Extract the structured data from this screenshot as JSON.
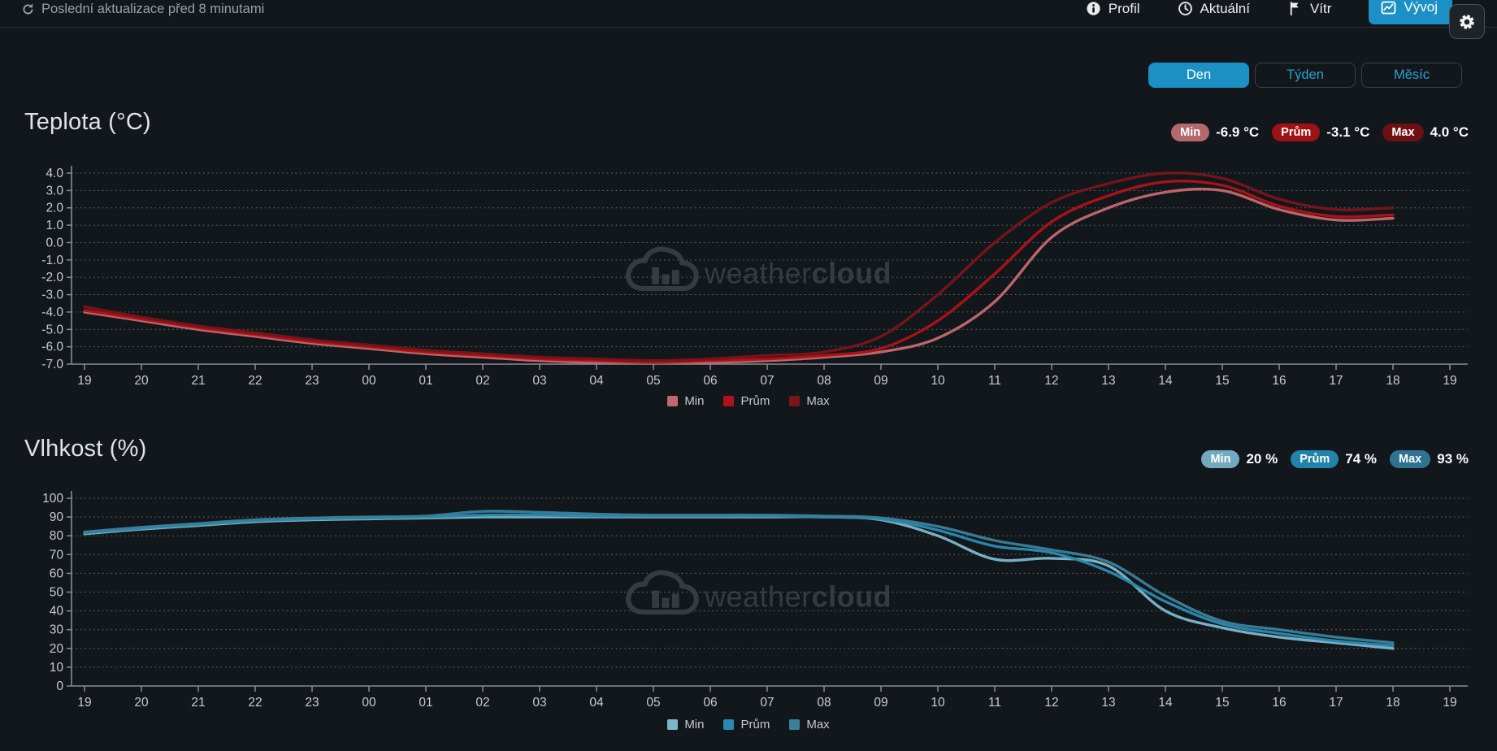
{
  "page": {
    "background": "#12171c",
    "accent_blue": "#1b90c5"
  },
  "topbar": {
    "last_update": "Poslední aktualizace před 8 minutami",
    "refresh_icon": "refresh-icon",
    "nav": [
      {
        "label": "Profil",
        "icon": "info-icon",
        "active": false
      },
      {
        "label": "Aktuální",
        "icon": "clock-icon",
        "active": false
      },
      {
        "label": "Vítr",
        "icon": "wind-flag-icon",
        "active": false
      },
      {
        "label": "Vývoj",
        "icon": "line-chart-icon",
        "active": true
      }
    ],
    "settings_icon": "gear-icon"
  },
  "period_tabs": [
    {
      "label": "Den",
      "active": true
    },
    {
      "label": "Týden",
      "active": false
    },
    {
      "label": "Měsíc",
      "active": false
    }
  ],
  "watermark": {
    "icon": "weathercloud-logo",
    "text_light": "weather",
    "text_bold": "cloud",
    "color": "#394047"
  },
  "chart_data": [
    {
      "type": "line",
      "title": "Teplota (°C)",
      "stats": [
        {
          "label": "Min",
          "value": "-6.9 °C",
          "pill_color": "#b4696c"
        },
        {
          "label": "Prům",
          "value": "-3.1 °C",
          "pill_color": "#9e1217"
        },
        {
          "label": "Max",
          "value": "4.0 °C",
          "pill_color": "#6d1014"
        }
      ],
      "x_tick_labels": [
        "19",
        "20",
        "21",
        "22",
        "23",
        "00",
        "01",
        "02",
        "03",
        "04",
        "05",
        "06",
        "07",
        "08",
        "09",
        "10",
        "11",
        "12",
        "13",
        "14",
        "15",
        "16",
        "17",
        "18",
        "19"
      ],
      "y_tick_labels": [
        "4.0",
        "3.0",
        "2.0",
        "1.0",
        "0.0",
        "-1.0",
        "-2.0",
        "-3.0",
        "-4.0",
        "-5.0",
        "-6.0",
        "-7.0"
      ],
      "ylim": [
        -7,
        4
      ],
      "grid": "dotted",
      "legend_position": "bottom",
      "series": [
        {
          "name": "Min",
          "color": "#c2686d",
          "values": [
            -4.0,
            -4.5,
            -5.0,
            -5.4,
            -5.8,
            -6.1,
            -6.4,
            -6.6,
            -6.8,
            -6.9,
            -6.9,
            -6.9,
            -6.8,
            -6.6,
            -6.3,
            -5.5,
            -3.4,
            0.3,
            2.0,
            2.9,
            3.0,
            1.9,
            1.3,
            1.4
          ]
        },
        {
          "name": "Prům",
          "color": "#ae1318",
          "values": [
            -3.9,
            -4.4,
            -4.9,
            -5.3,
            -5.7,
            -6.0,
            -6.3,
            -6.5,
            -6.7,
            -6.8,
            -6.9,
            -6.8,
            -6.7,
            -6.5,
            -6.1,
            -4.5,
            -1.8,
            1.2,
            2.7,
            3.5,
            3.3,
            2.1,
            1.5,
            1.6
          ]
        },
        {
          "name": "Max",
          "color": "#7a151a",
          "values": [
            -3.7,
            -4.3,
            -4.8,
            -5.2,
            -5.6,
            -5.9,
            -6.2,
            -6.4,
            -6.6,
            -6.7,
            -6.8,
            -6.7,
            -6.5,
            -6.3,
            -5.4,
            -3.0,
            0.0,
            2.3,
            3.4,
            4.0,
            3.7,
            2.5,
            1.9,
            2.0
          ]
        }
      ]
    },
    {
      "type": "line",
      "title": "Vlhkost (%)",
      "stats": [
        {
          "label": "Min",
          "value": "20 %",
          "pill_color": "#74aabf"
        },
        {
          "label": "Prům",
          "value": "74 %",
          "pill_color": "#2282aa"
        },
        {
          "label": "Max",
          "value": "93 %",
          "pill_color": "#2f7390"
        }
      ],
      "x_tick_labels": [
        "19",
        "20",
        "21",
        "22",
        "23",
        "00",
        "01",
        "02",
        "03",
        "04",
        "05",
        "06",
        "07",
        "08",
        "09",
        "10",
        "11",
        "12",
        "13",
        "14",
        "15",
        "16",
        "17",
        "18",
        "19"
      ],
      "y_tick_labels": [
        "100",
        "90",
        "80",
        "70",
        "60",
        "50",
        "40",
        "30",
        "20",
        "10",
        "0"
      ],
      "ylim": [
        0,
        100
      ],
      "grid": "dotted",
      "legend_position": "bottom",
      "series": [
        {
          "name": "Min",
          "color": "#7cb6c9",
          "values": [
            81,
            83.5,
            85.5,
            87.5,
            88.5,
            89,
            89.5,
            90,
            90,
            90,
            90,
            90,
            90,
            90,
            88.5,
            80,
            67.5,
            68,
            64,
            40,
            31,
            26,
            23,
            20
          ]
        },
        {
          "name": "Prům",
          "color": "#2a89b0",
          "values": [
            81.5,
            84,
            86,
            88,
            89,
            89.5,
            90,
            91,
            91,
            90.5,
            90.5,
            90.5,
            90.5,
            90,
            89,
            83,
            74.5,
            71,
            61,
            45,
            33,
            28,
            24,
            21.5
          ]
        },
        {
          "name": "Max",
          "color": "#3a7f99",
          "values": [
            82,
            84.5,
            86.5,
            88.5,
            89.5,
            90,
            90.5,
            93,
            92.5,
            91.5,
            91,
            91,
            91,
            90.5,
            89.5,
            85,
            77.5,
            72.5,
            66,
            48,
            34.5,
            30,
            26,
            23
          ]
        }
      ]
    }
  ]
}
